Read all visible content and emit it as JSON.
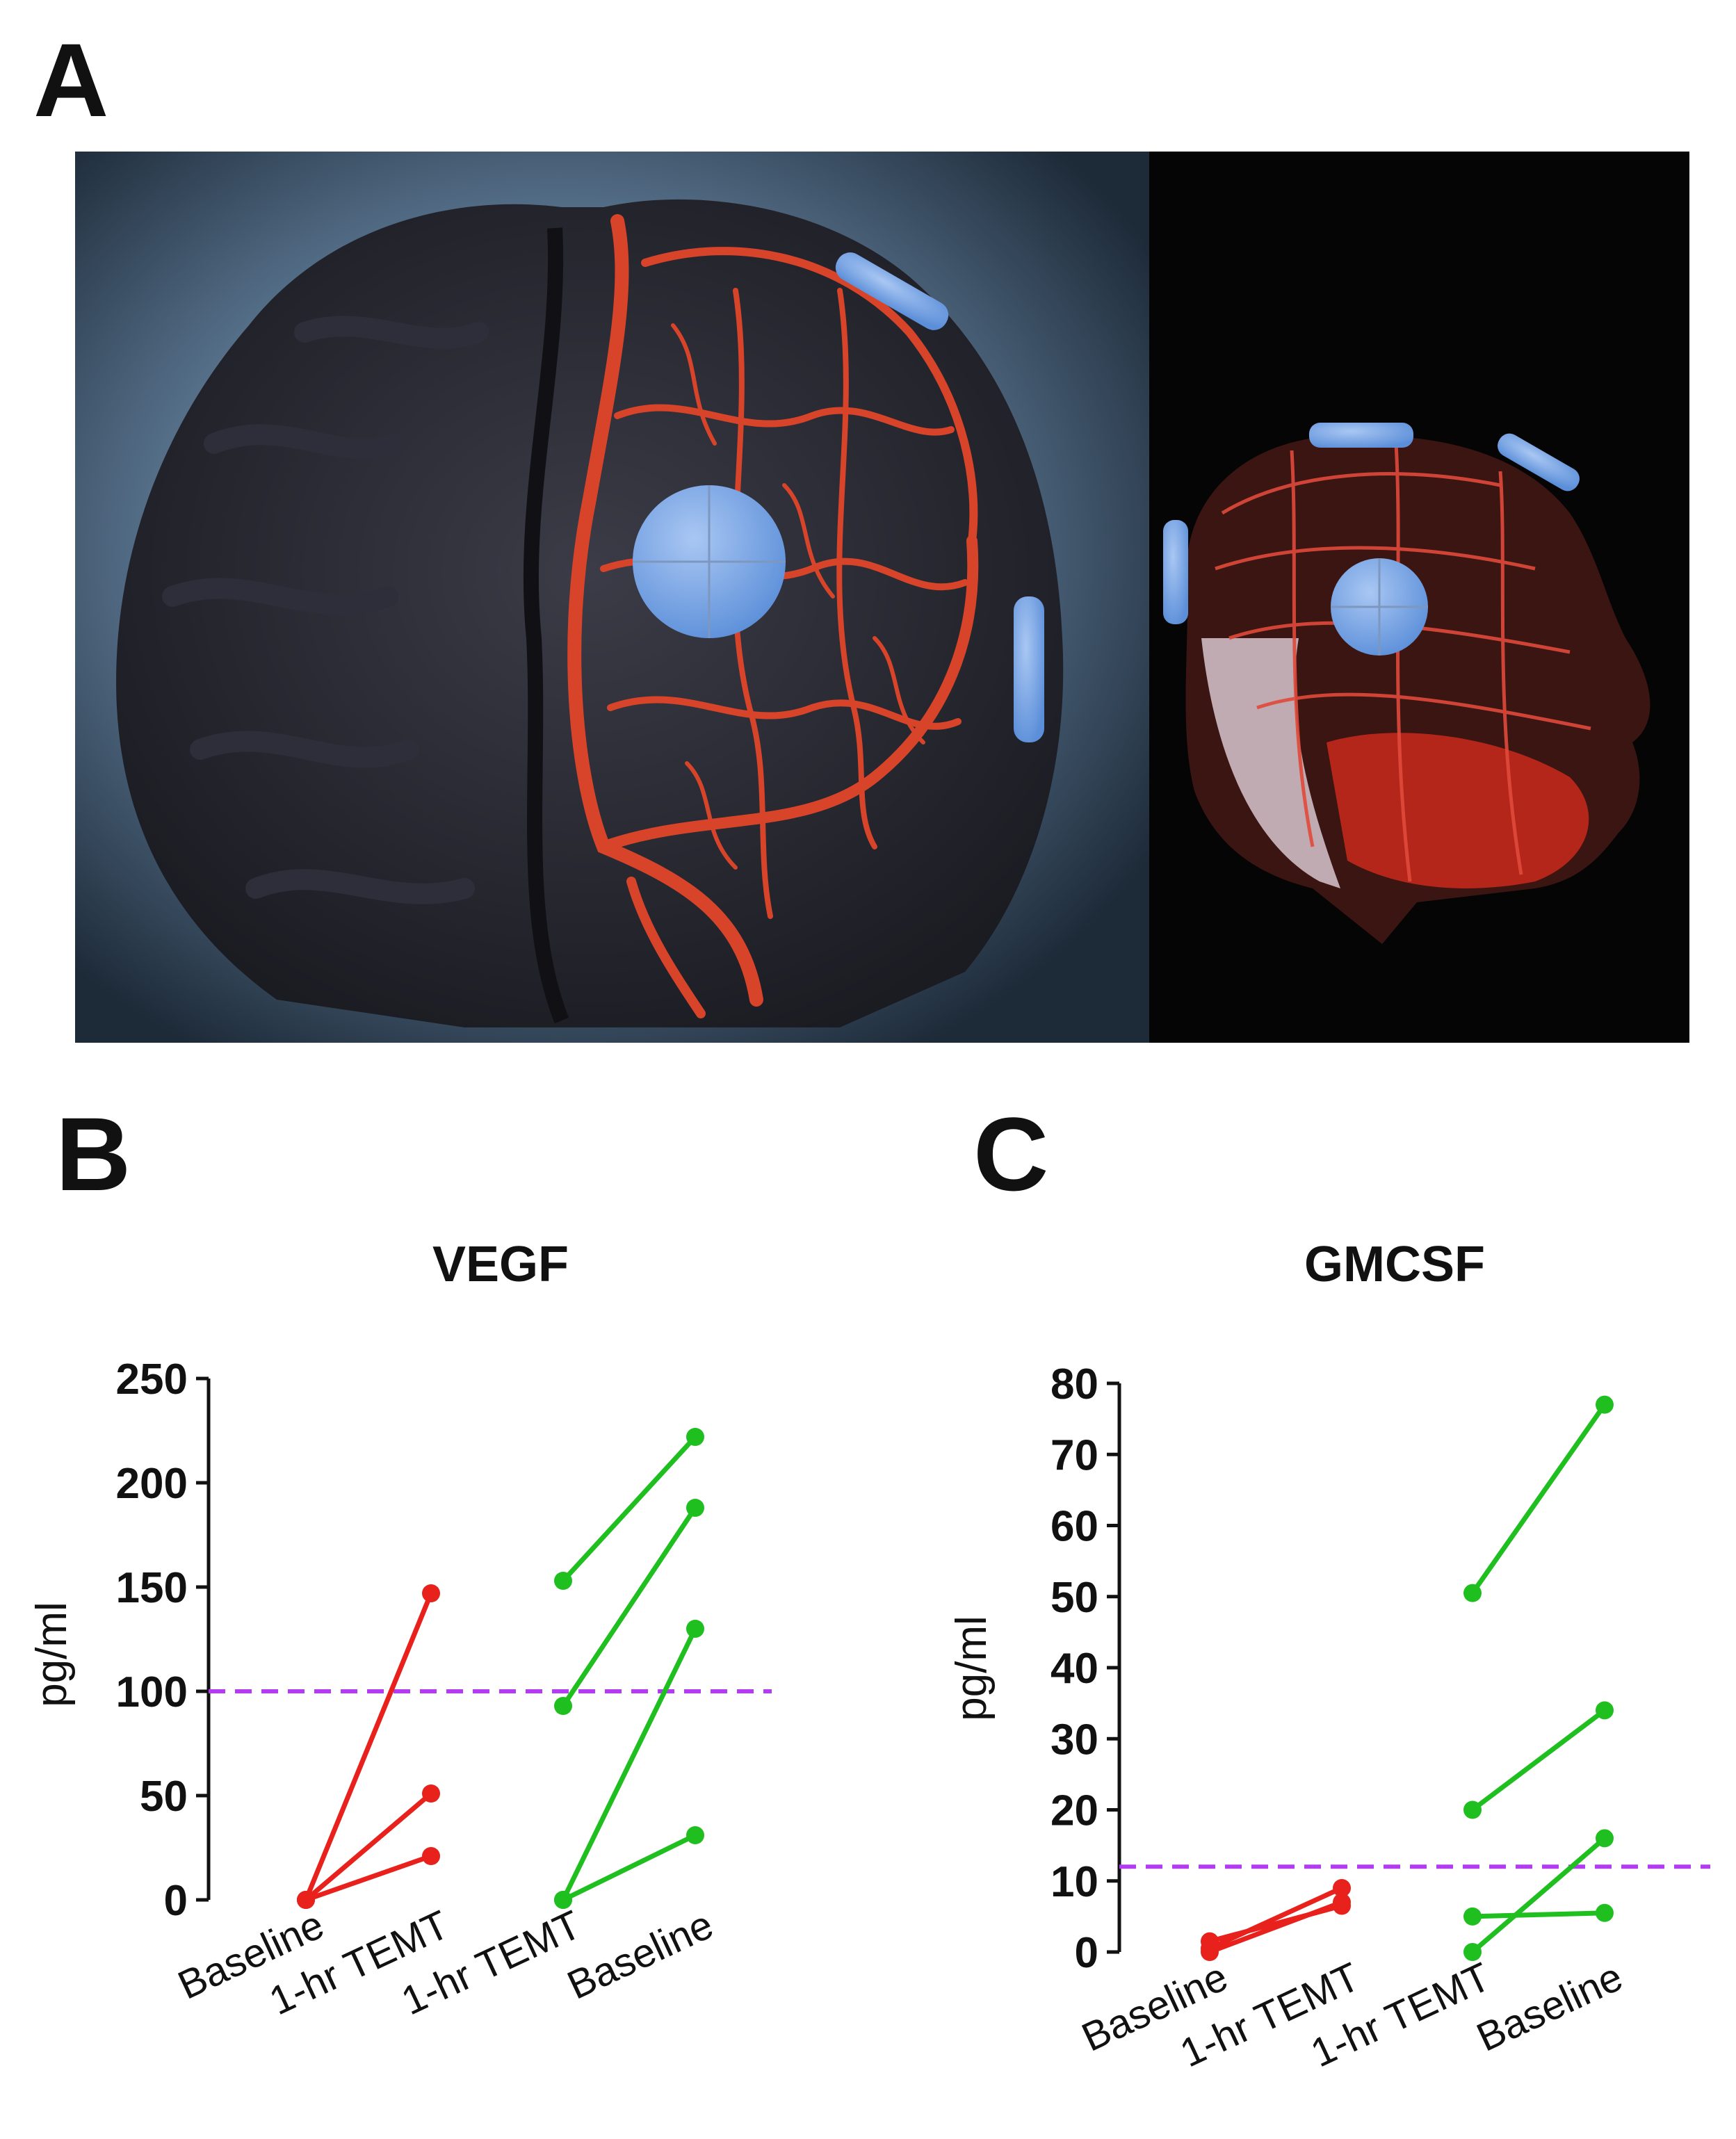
{
  "panel_labels": {
    "a": "A",
    "b": "B",
    "c": "C"
  },
  "colors": {
    "baseline_group": "#e8211d",
    "temt_group": "#1fbf1f",
    "threshold": "#b43cf0",
    "artery": "#d8442a",
    "transducer": "#6f9fe6"
  },
  "chart_data": [
    {
      "type": "line",
      "title": "VEGF",
      "ylabel": "pg/ml",
      "categories": [
        "Baseline",
        "1-hr TEMT",
        "1-hr TEMT",
        "Baseline"
      ],
      "ylim": [
        0,
        250
      ],
      "yticks": [
        0,
        50,
        100,
        150,
        200,
        250
      ],
      "threshold": 100,
      "groups": [
        {
          "color": "red",
          "x": [
            0,
            1
          ],
          "pairs": [
            [
              0,
              147
            ],
            [
              0,
              51
            ],
            [
              0,
              21
            ]
          ]
        },
        {
          "color": "green",
          "x": [
            2,
            3
          ],
          "pairs": [
            [
              153,
              222
            ],
            [
              93,
              188
            ],
            [
              0,
              130
            ],
            [
              0,
              31
            ]
          ]
        }
      ]
    },
    {
      "type": "line",
      "title": "GMCSF",
      "ylabel": "pg/ml",
      "categories": [
        "Baseline",
        "1-hr TEMT",
        "1-hr TEMT",
        "Baseline"
      ],
      "ylim": [
        0,
        80
      ],
      "yticks": [
        0,
        10,
        20,
        30,
        40,
        50,
        60,
        70,
        80
      ],
      "threshold": 12,
      "groups": [
        {
          "color": "red",
          "x": [
            0,
            1
          ],
          "pairs": [
            [
              0.5,
              9
            ],
            [
              1.5,
              6.5
            ],
            [
              0,
              7
            ]
          ]
        },
        {
          "color": "green",
          "x": [
            2,
            3
          ],
          "pairs": [
            [
              50.5,
              77
            ],
            [
              20,
              34
            ],
            [
              0,
              16
            ],
            [
              5,
              5.5
            ]
          ]
        }
      ]
    }
  ]
}
